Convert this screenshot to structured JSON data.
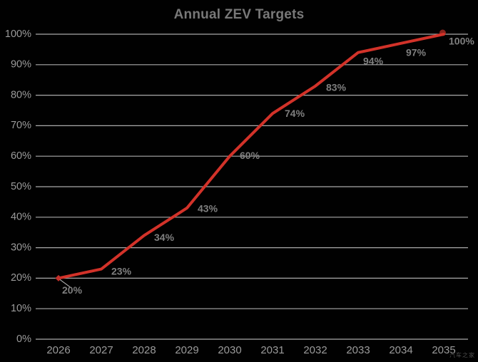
{
  "title": "Annual ZEV Targets",
  "watermark": "汽车之家",
  "colors": {
    "background": "#010101",
    "title": "#787878",
    "grid": "#aaaaaa",
    "axis_labels": "#9b9b9b",
    "data_labels": "#7f7f7f",
    "line": "#d23229",
    "start_marker": "#c4302b",
    "end_marker": "#8a241d",
    "leader": "#c8c8c8",
    "watermark_color": "#4f4f4f"
  },
  "chart_data": {
    "type": "line",
    "title": "Annual ZEV Targets",
    "x": [
      "2026",
      "2027",
      "2028",
      "2029",
      "2030",
      "2031",
      "2032",
      "2033",
      "2034",
      "2035"
    ],
    "values": [
      20,
      23,
      34,
      43,
      60,
      74,
      83,
      94,
      97,
      100
    ],
    "point_labels": [
      "20%",
      "23%",
      "34%",
      "43%",
      "60%",
      "74%",
      "83%",
      "94%",
      "97%",
      "100%"
    ],
    "xlabel": "",
    "ylabel": "",
    "ylim": [
      0,
      100
    ],
    "ytick_values": [
      0,
      10,
      20,
      30,
      40,
      50,
      60,
      70,
      80,
      90,
      100
    ],
    "ytick_labels": [
      "0%",
      "10%",
      "20%",
      "30%",
      "40%",
      "50%",
      "60%",
      "70%",
      "80%",
      "90%",
      "100%"
    ],
    "grid": true,
    "legend": false,
    "series_color": "#d23229",
    "annotation": "first point label connected by leader line"
  }
}
